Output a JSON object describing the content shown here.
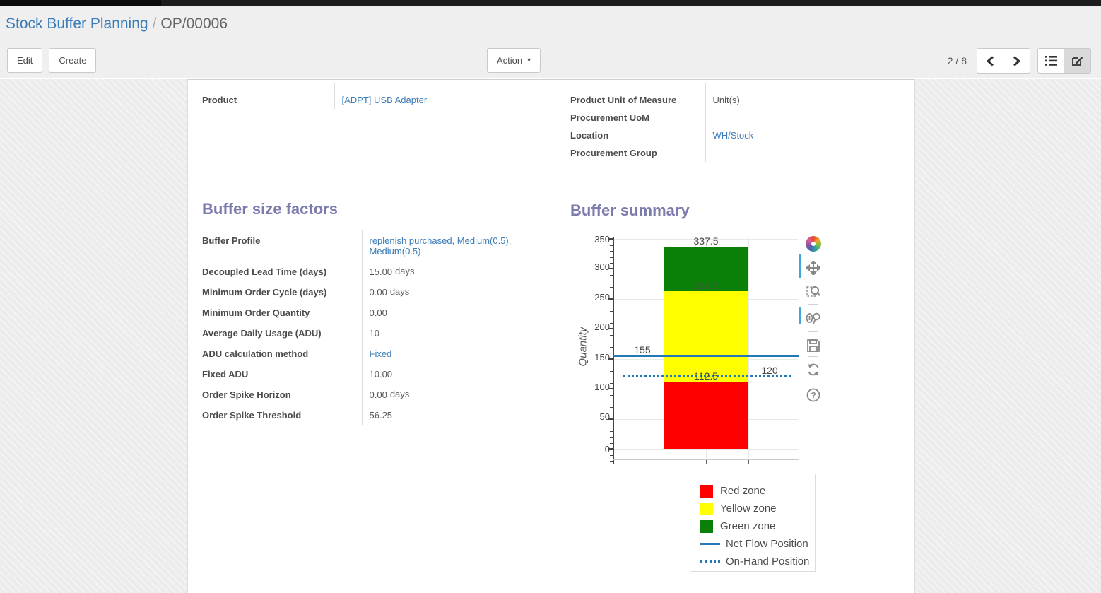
{
  "breadcrumb": {
    "parent": "Stock Buffer Planning",
    "separator": "/",
    "current": "OP/00006"
  },
  "control_panel": {
    "edit_label": "Edit",
    "create_label": "Create",
    "action_label": "Action",
    "pager": "2 / 8",
    "icons": [
      "previous-page-icon",
      "next-page-icon",
      "list-view-icon",
      "form-view-icon"
    ],
    "active_view": "form"
  },
  "form": {
    "product_group": {
      "rows": [
        {
          "label": "Product",
          "value": "[ADPT] USB Adapter"
        }
      ]
    },
    "right_group": {
      "rows": [
        {
          "label": "Product Unit of Measure",
          "value": "Unit(s)"
        },
        {
          "label": "Procurement UoM",
          "value": ""
        },
        {
          "label": "Location",
          "value": "WH/Stock"
        },
        {
          "label": "Procurement Group",
          "value": ""
        }
      ]
    },
    "factors": {
      "title": "Buffer size factors",
      "rows": [
        {
          "label": "Buffer Profile",
          "value": "replenish purchased, Medium(0.5), Medium(0.5)",
          "suffix": ""
        },
        {
          "label": "Decoupled Lead Time (days)",
          "value": "15.00",
          "suffix": "days"
        },
        {
          "label": "Minimum Order Cycle (days)",
          "value": "0.00",
          "suffix": "days"
        },
        {
          "label": "Minimum Order Quantity",
          "value": "0.00",
          "suffix": ""
        },
        {
          "label": "Average Daily Usage (ADU)",
          "value": "10",
          "suffix": ""
        },
        {
          "label": "ADU calculation method",
          "value": "Fixed",
          "suffix": ""
        },
        {
          "label": "Fixed ADU",
          "value": "10.00",
          "suffix": ""
        },
        {
          "label": "Order Spike Horizon",
          "value": "0.00",
          "suffix": "days"
        },
        {
          "label": "Order Spike Threshold",
          "value": "56.25",
          "suffix": ""
        }
      ]
    },
    "summary_title": "Buffer summary"
  },
  "chart_data": {
    "type": "bar",
    "title": "Buffer summary",
    "ylabel": "Quantity",
    "ylim": [
      0,
      350
    ],
    "yticks": [
      0,
      50,
      100,
      150,
      200,
      250,
      300,
      350
    ],
    "grid": true,
    "legend_position": "below-right",
    "series": [
      {
        "name": "Red zone",
        "type": "bar-zone",
        "color": "#ff0000",
        "from": 0,
        "to": 112.5
      },
      {
        "name": "Yellow zone",
        "type": "bar-zone",
        "color": "#ffff00",
        "from": 112.5,
        "to": 262.5
      },
      {
        "name": "Green zone",
        "type": "bar-zone",
        "color": "#0b8008",
        "from": 262.5,
        "to": 337.5
      },
      {
        "name": "Net Flow Position",
        "type": "line",
        "style": "solid",
        "color": "#2478b6",
        "value": 155
      },
      {
        "name": "On-Hand Position",
        "type": "line",
        "style": "dotted",
        "color": "#2478b6",
        "value": 120
      }
    ],
    "annotations": {
      "green_top": "337.5",
      "yellow_top": "262.5",
      "red_top": "112.5",
      "net_flow": "155",
      "on_hand": "120"
    }
  },
  "modebar": {
    "icons": [
      "plotly-logo-icon",
      "pan-icon",
      "box-zoom-icon",
      "zoom-in-out-icon",
      "save-icon",
      "reset-axes-icon",
      "help-icon"
    ]
  }
}
